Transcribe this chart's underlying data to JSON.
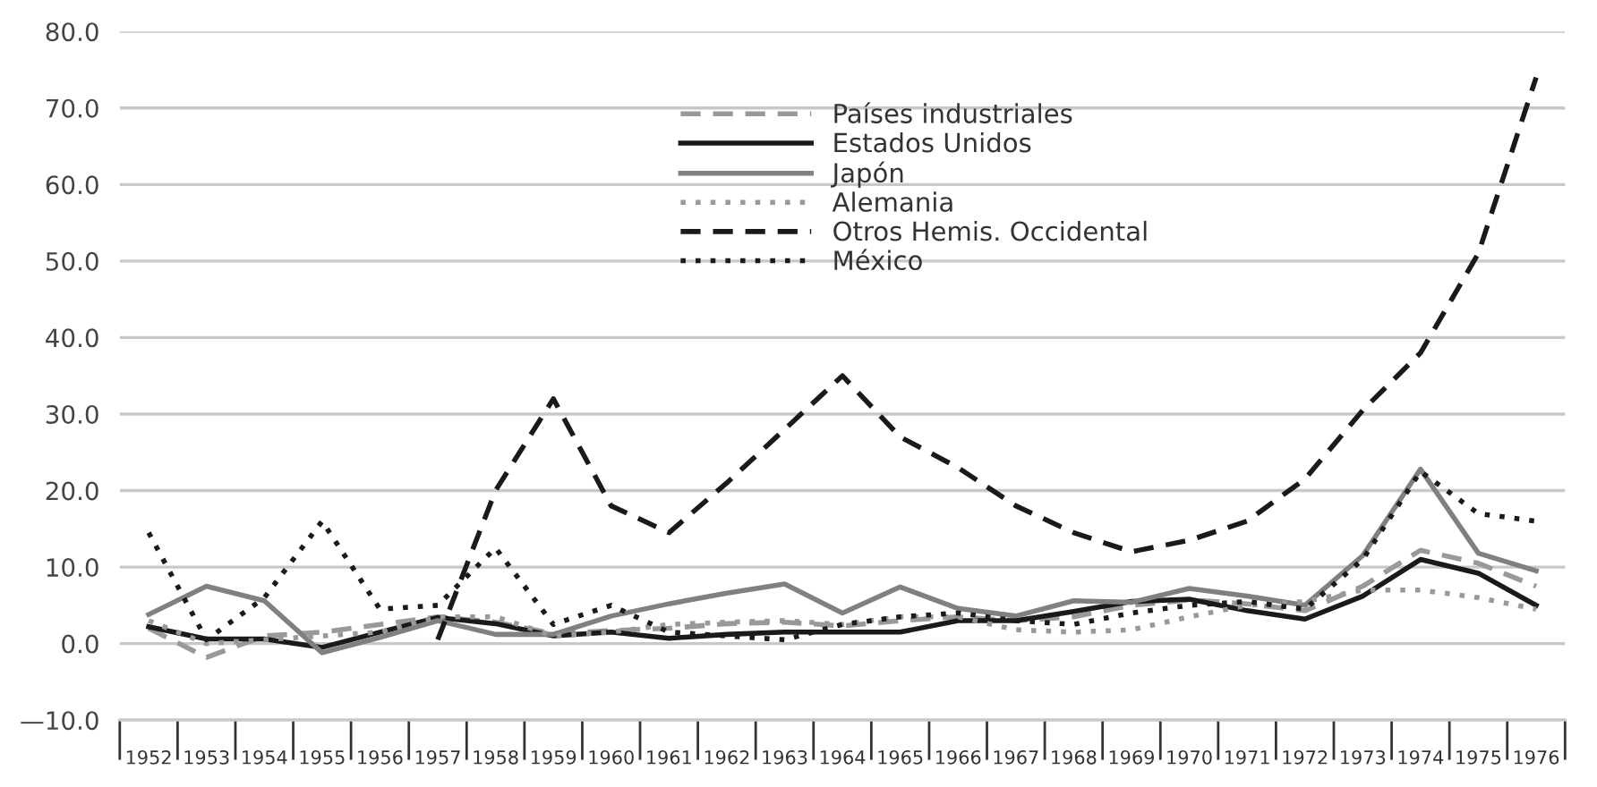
{
  "chart_data": {
    "type": "line",
    "categories": [
      "1952",
      "1953",
      "1954",
      "1955",
      "1956",
      "1957",
      "1958",
      "1959",
      "1960",
      "1961",
      "1962",
      "1963",
      "1964",
      "1965",
      "1966",
      "1967",
      "1968",
      "1969",
      "1970",
      "1971",
      "1972",
      "1973",
      "1974",
      "1975",
      "1976"
    ],
    "series": [
      {
        "name": "Países industriales",
        "color": "#999999",
        "line_style": "dashed",
        "values": [
          2,
          -1.8,
          1,
          1.5,
          2.5,
          3.5,
          2.8,
          1.3,
          1.7,
          2,
          2.6,
          2.8,
          2.3,
          3,
          3.5,
          3,
          3.5,
          5,
          5.7,
          5.2,
          4.3,
          7.5,
          12.2,
          10.5,
          7.5
        ]
      },
      {
        "name": "Estados Unidos",
        "color": "#1a1a1a",
        "line_style": "solid",
        "values": [
          2.2,
          0.6,
          0.6,
          -0.5,
          1.5,
          3.4,
          2.6,
          1,
          1.5,
          0.7,
          1.2,
          1.5,
          1.5,
          1.5,
          3,
          3,
          4.2,
          5.5,
          5.8,
          4.3,
          3.2,
          6.2,
          11,
          9.2,
          5
        ]
      },
      {
        "name": "Japón",
        "color": "#808080",
        "line_style": "solid",
        "values": [
          3.8,
          7.5,
          5.6,
          -1.2,
          0.8,
          3,
          1.2,
          1.2,
          3.6,
          5.2,
          6.6,
          7.8,
          4,
          7.4,
          4.6,
          3.6,
          5.6,
          5.4,
          7.2,
          6.2,
          5,
          11.5,
          22.8,
          11.8,
          9.5
        ]
      },
      {
        "name": "Alemania",
        "color": "#999999",
        "line_style": "dotted",
        "values": [
          3,
          0,
          0.5,
          1,
          1.5,
          3.5,
          3.5,
          1,
          1.5,
          2.5,
          2.8,
          3,
          2.5,
          3.5,
          3.5,
          1.8,
          1.5,
          1.8,
          3.5,
          5,
          5.5,
          7,
          7,
          6,
          4.5
        ]
      },
      {
        "name": "Otros Hemis. Occidental",
        "color": "#1a1a1a",
        "line_style": "dashed",
        "values": [
          null,
          null,
          null,
          null,
          null,
          0.5,
          20,
          32,
          18,
          14.5,
          21,
          28,
          35,
          27,
          23,
          18,
          14.5,
          12,
          13.5,
          16,
          21.5,
          30.5,
          38,
          51,
          74
        ]
      },
      {
        "name": "México",
        "color": "#1a1a1a",
        "line_style": "dotted",
        "values": [
          14.5,
          0.5,
          6,
          16,
          4.5,
          5,
          12.5,
          2.5,
          5,
          1.5,
          1,
          0.5,
          2.5,
          3.5,
          4,
          3,
          2.5,
          4,
          5,
          5.5,
          4.5,
          11,
          22.5,
          17,
          16
        ]
      }
    ],
    "ylim": [
      -10,
      80
    ],
    "yticks": [
      {
        "value": -10,
        "label": "—10.0"
      },
      {
        "value": 0,
        "label": "0.0"
      },
      {
        "value": 10,
        "label": "10.0"
      },
      {
        "value": 20,
        "label": "20.0"
      },
      {
        "value": 30,
        "label": "30.0"
      },
      {
        "value": 40,
        "label": "40.0"
      },
      {
        "value": 50,
        "label": "50.0"
      },
      {
        "value": 60,
        "label": "60.0"
      },
      {
        "value": 70,
        "label": "70.0"
      },
      {
        "value": 80,
        "label": "80.0"
      }
    ],
    "grid": "y",
    "legend": "top"
  }
}
